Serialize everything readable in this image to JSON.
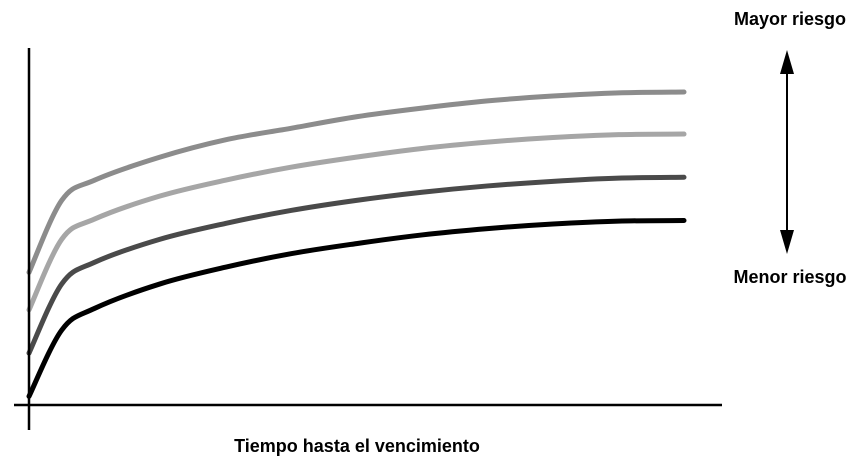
{
  "chart_data": {
    "type": "line",
    "xlabel": "Tiempo hasta el vencimiento",
    "ylabel": "",
    "x": [
      0,
      0.5,
      1,
      2,
      3,
      4,
      5,
      6,
      7,
      8,
      9,
      10
    ],
    "series": [
      {
        "values": [
          2.2,
          4.7,
          5.4,
          6.2,
          6.8,
          7.2,
          7.6,
          7.9,
          8.15,
          8.32,
          8.43,
          8.46
        ],
        "color": "#8c8c8c"
      },
      {
        "values": [
          0.9,
          3.35,
          4.05,
          4.85,
          5.4,
          5.85,
          6.2,
          6.5,
          6.72,
          6.88,
          6.98,
          7.0
        ],
        "color": "#a6a6a6"
      },
      {
        "values": [
          -0.6,
          1.8,
          2.55,
          3.35,
          3.9,
          4.35,
          4.7,
          4.98,
          5.2,
          5.36,
          5.47,
          5.5
        ],
        "color": "#4a4a4a"
      },
      {
        "values": [
          -2.1,
          0.2,
          0.95,
          1.8,
          2.38,
          2.85,
          3.2,
          3.5,
          3.72,
          3.88,
          3.98,
          4.0
        ],
        "color": "#000000"
      }
    ],
    "xlim": [
      0,
      10
    ],
    "ylim": [
      -2.4,
      9.5
    ],
    "grid": false,
    "legend": "none",
    "annotations": {
      "higher_risk": "Mayor riesgo",
      "lower_risk": "Menor riesgo"
    }
  }
}
